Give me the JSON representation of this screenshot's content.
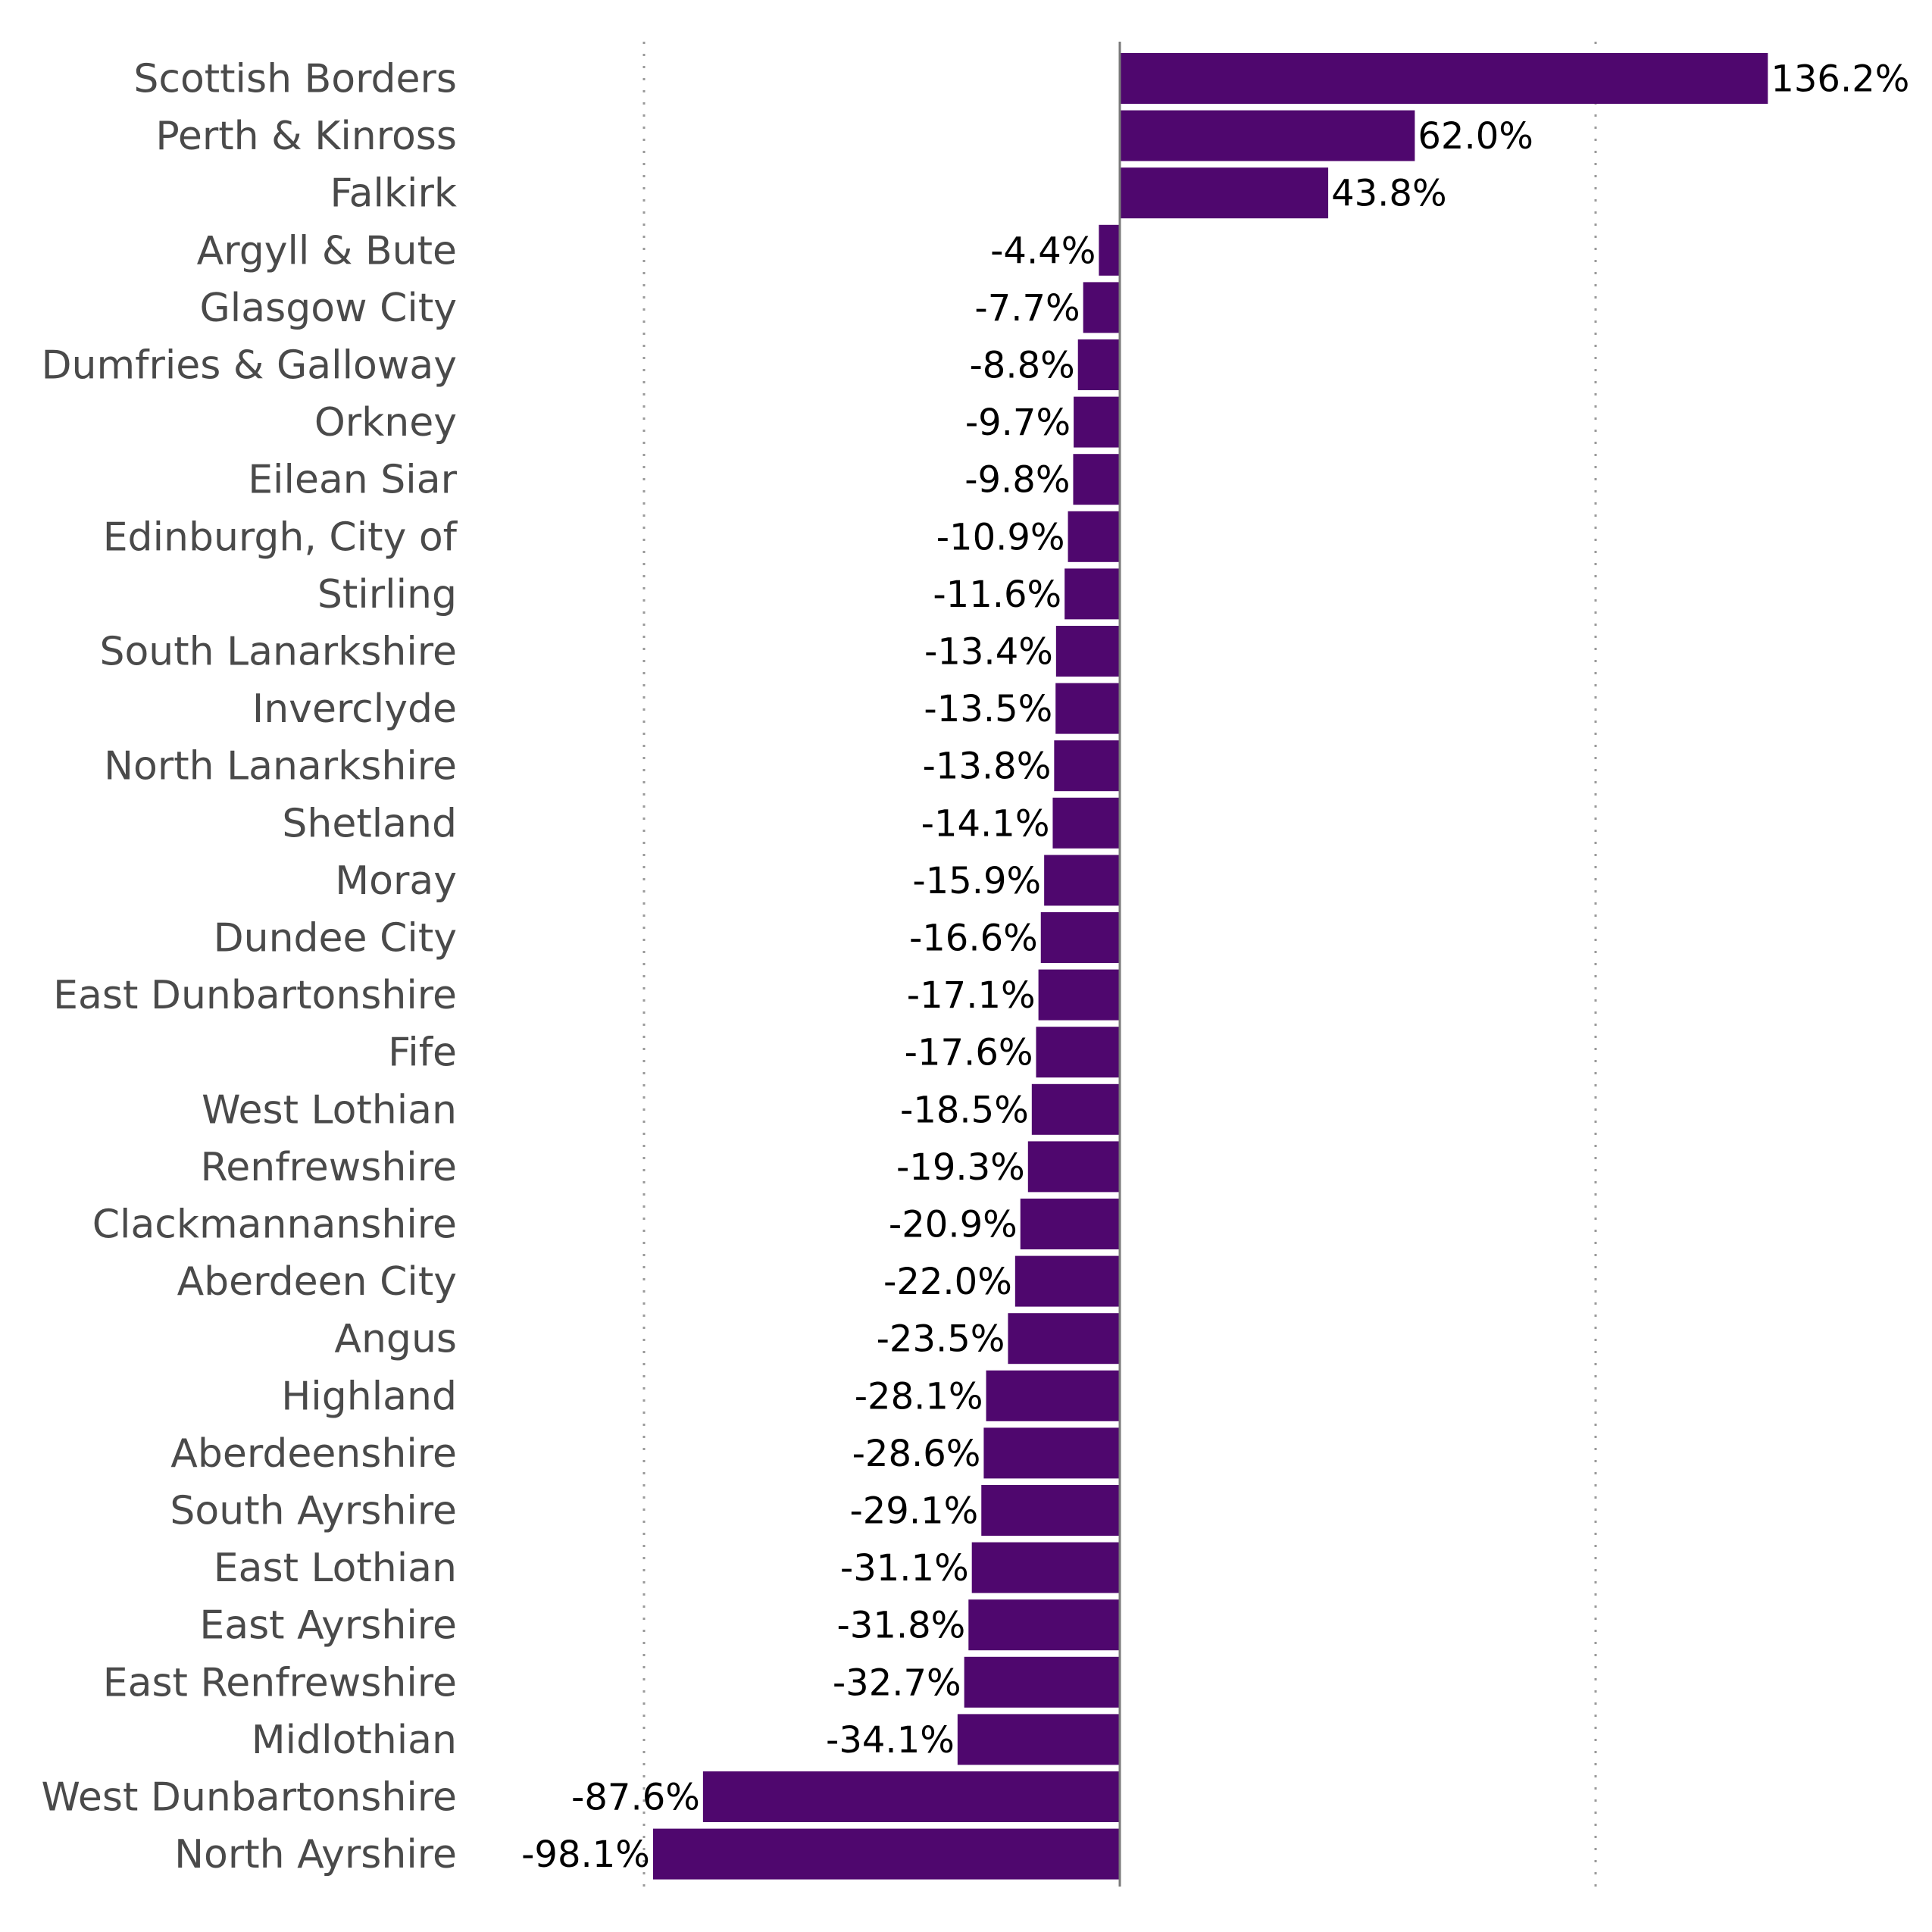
{
  "chart_data": {
    "type": "bar",
    "orientation": "horizontal",
    "bar_color": "#4f076e",
    "value_format": "percent_one_decimal",
    "grid": "vertical dotted",
    "xlim": [
      -100,
      100
    ],
    "x_gridlines": [
      -100,
      100
    ],
    "categories": [
      "Scottish Borders",
      "Perth & Kinross",
      "Falkirk",
      "Argyll & Bute",
      "Glasgow City",
      "Dumfries & Galloway",
      "Orkney",
      "Eilean Siar",
      "Edinburgh, City of",
      "Stirling",
      "South Lanarkshire",
      "Inverclyde",
      "North Lanarkshire",
      "Shetland",
      "Moray",
      "Dundee City",
      "East Dunbartonshire",
      "Fife",
      "West Lothian",
      "Renfrewshire",
      "Clackmannanshire",
      "Aberdeen City",
      "Angus",
      "Highland",
      "Aberdeenshire",
      "South Ayrshire",
      "East Lothian",
      "East Ayrshire",
      "East Renfrewshire",
      "Midlothian",
      "West Dunbartonshire",
      "North Ayrshire"
    ],
    "values": [
      136.2,
      62.0,
      43.8,
      -4.4,
      -7.7,
      -8.8,
      -9.7,
      -9.8,
      -10.9,
      -11.6,
      -13.4,
      -13.5,
      -13.8,
      -14.1,
      -15.9,
      -16.6,
      -17.1,
      -17.6,
      -18.5,
      -19.3,
      -20.9,
      -22.0,
      -23.5,
      -28.1,
      -28.6,
      -29.1,
      -31.1,
      -31.8,
      -32.7,
      -34.1,
      -87.6,
      -98.1
    ],
    "data_labels": [
      "136.2%",
      "62.0%",
      "43.8%",
      "-4.4%",
      "-7.7%",
      "-8.8%",
      "-9.7%",
      "-9.8%",
      "-10.9%",
      "-11.6%",
      "-13.4%",
      "-13.5%",
      "-13.8%",
      "-14.1%",
      "-15.9%",
      "-16.6%",
      "-17.1%",
      "-17.6%",
      "-18.5%",
      "-19.3%",
      "-20.9%",
      "-22.0%",
      "-23.5%",
      "-28.1%",
      "-28.6%",
      "-29.1%",
      "-31.1%",
      "-31.8%",
      "-32.7%",
      "-34.1%",
      "-87.6%",
      "-98.1%"
    ]
  }
}
